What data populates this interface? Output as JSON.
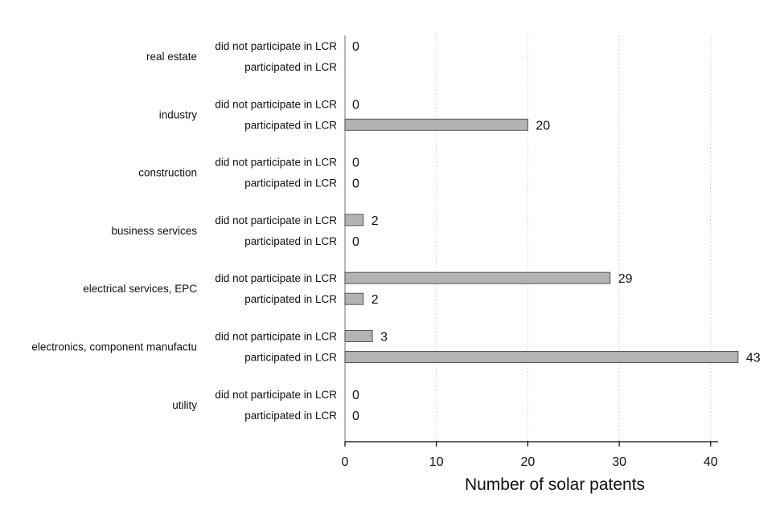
{
  "chart_data": {
    "type": "bar",
    "orientation": "horizontal",
    "title": "",
    "xlabel": "Number of solar patents",
    "ylabel": "",
    "xlim": [
      0,
      46
    ],
    "xticks": [
      0,
      10,
      20,
      30,
      40
    ],
    "grid": true,
    "legend": "none",
    "colors": {
      "bar_fill": "#b3b3b3",
      "bar_stroke": "#555555"
    },
    "groups": [
      {
        "name": "real estate",
        "bars": [
          {
            "label": "did not participate in LCR",
            "value": 0,
            "value_label": "0"
          },
          {
            "label": "participated in LCR",
            "value": 0,
            "value_label": ""
          }
        ]
      },
      {
        "name": "industry",
        "bars": [
          {
            "label": "did not participate in LCR",
            "value": 0,
            "value_label": "0"
          },
          {
            "label": "participated in LCR",
            "value": 20,
            "value_label": "20"
          }
        ]
      },
      {
        "name": "construction",
        "bars": [
          {
            "label": "did not participate in LCR",
            "value": 0,
            "value_label": "0"
          },
          {
            "label": "participated in LCR",
            "value": 0,
            "value_label": "0"
          }
        ]
      },
      {
        "name": "business services",
        "bars": [
          {
            "label": "did not participate in LCR",
            "value": 2,
            "value_label": "2"
          },
          {
            "label": "participated in LCR",
            "value": 0,
            "value_label": "0"
          }
        ]
      },
      {
        "name": "electrical services, EPC",
        "bars": [
          {
            "label": "did not participate in LCR",
            "value": 29,
            "value_label": "29"
          },
          {
            "label": "participated in LCR",
            "value": 2,
            "value_label": "2"
          }
        ]
      },
      {
        "name": "electronics, component manufactu",
        "bars": [
          {
            "label": "did not participate in LCR",
            "value": 3,
            "value_label": "3"
          },
          {
            "label": "participated in LCR",
            "value": 43,
            "value_label": "43"
          }
        ]
      },
      {
        "name": "utility",
        "bars": [
          {
            "label": "did not participate in LCR",
            "value": 0,
            "value_label": "0"
          },
          {
            "label": "participated in LCR",
            "value": 0,
            "value_label": "0"
          }
        ]
      }
    ]
  }
}
